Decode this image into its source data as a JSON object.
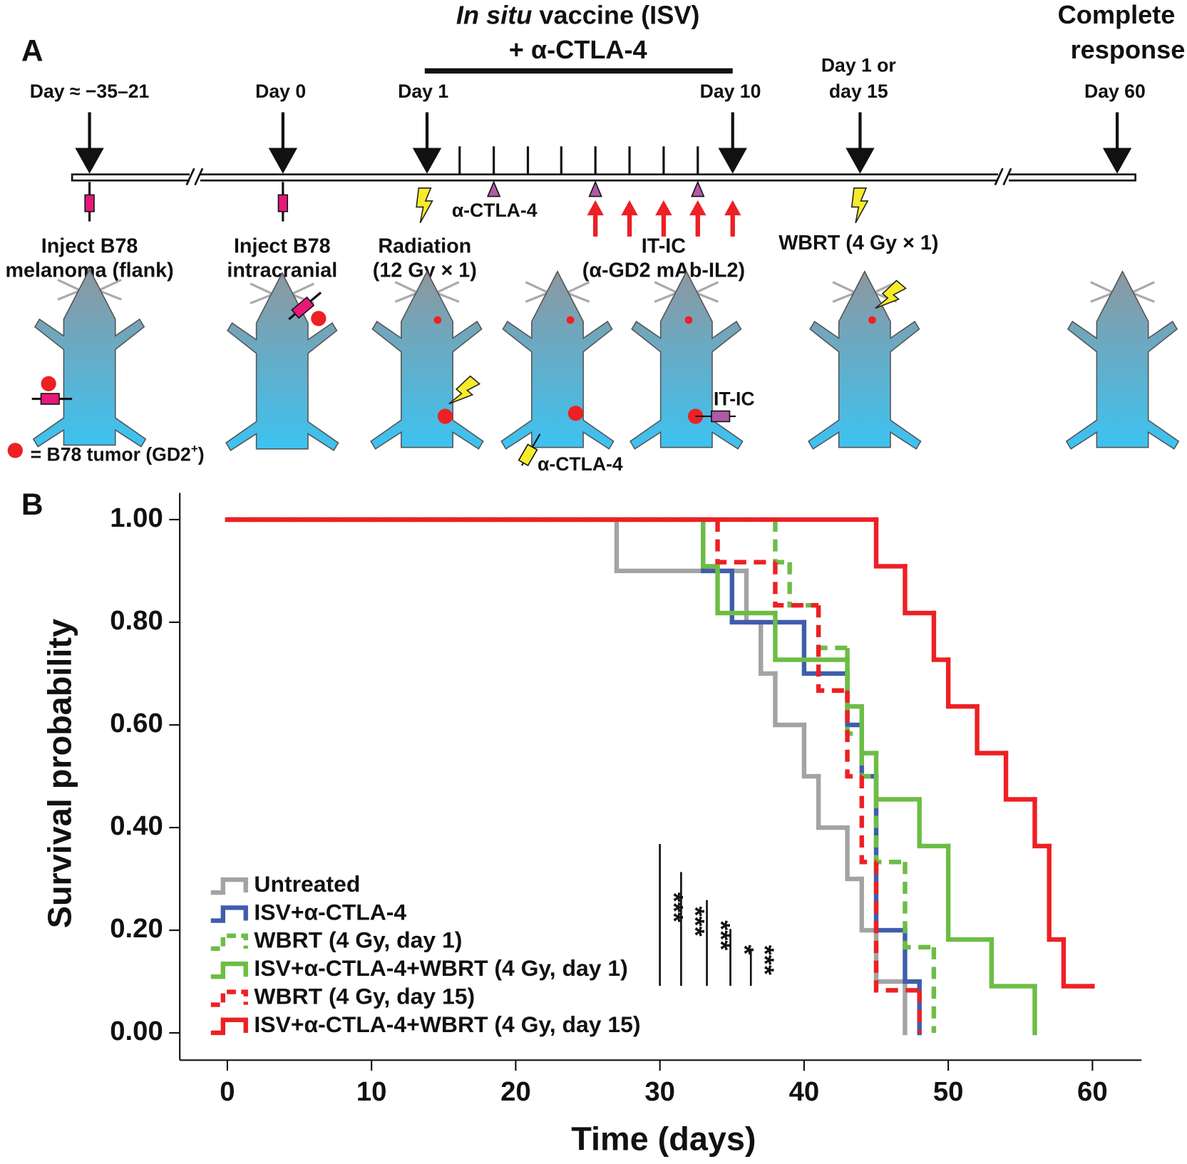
{
  "panel_a": {
    "label": "A",
    "isv_title_italic": "In situ",
    "isv_title_rest": " vaccine (ISV)",
    "isv_subtitle": "+ α-CTLA-4",
    "complete_response": [
      "Complete",
      "response"
    ],
    "days": {
      "flank": "Day ≈ −35–21",
      "intracranial": "Day 0",
      "day1": "Day 1",
      "day10": "Day 10",
      "wbrt": [
        "Day 1 or",
        "day 15"
      ],
      "day60": "Day 60"
    },
    "anti_ctla4": "α-CTLA-4",
    "steps": {
      "flank": [
        "Inject B78",
        "melanoma (flank)"
      ],
      "intracranial": [
        "Inject B78",
        "intracranial"
      ],
      "radiation": [
        "Radiation",
        "(12 Gy × 1)"
      ],
      "itic": [
        "IT-IC",
        "(α-GD2 mAb-IL2)"
      ],
      "wbrt": "WBRT (4 Gy × 1)"
    },
    "tumor_key": {
      "text": "= B78 tumor (GD2",
      "sup": "+",
      "end": ")"
    },
    "mouse_itic": "IT-IC",
    "mouse_ctla4": "α-CTLA-4"
  },
  "chart_data": {
    "type": "step",
    "panel_label": "B",
    "xlabel": "Time (days)",
    "ylabel": "Survival probability",
    "xlim": [
      -3.3,
      63.4
    ],
    "ylim": [
      -0.053,
      1.052
    ],
    "xticks": [
      0,
      10,
      20,
      30,
      40,
      50,
      60
    ],
    "yticks": [
      {
        "value": 0,
        "label": "0.00"
      },
      {
        "value": 0.2,
        "label": "0.20"
      },
      {
        "value": 0.4,
        "label": "0.40"
      },
      {
        "value": 0.6,
        "label": "0.60"
      },
      {
        "value": 0.8,
        "label": "0.80"
      },
      {
        "value": 1,
        "label": "1.00"
      }
    ],
    "legend": "lower left",
    "series": [
      {
        "name": "Untreated",
        "color": "#a3a3a3",
        "dashed": false,
        "x": [
          0,
          27,
          36,
          37,
          38,
          40,
          41,
          43,
          44,
          45,
          47
        ],
        "values": [
          1,
          0.9,
          0.8,
          0.7,
          0.6,
          0.5,
          0.4,
          0.3,
          0.2,
          0.1,
          0
        ]
      },
      {
        "name": "ISV+α-CTLA-4",
        "color": "#3f5dab",
        "dashed": false,
        "x": [
          0,
          33,
          35,
          40,
          43,
          44,
          45,
          47,
          48
        ],
        "values": [
          1,
          0.9,
          0.8,
          0.7,
          0.6,
          0.5,
          0.2,
          0.1,
          0
        ]
      },
      {
        "name": "WBRT (4 Gy, day 1)",
        "color": "#6cbd45",
        "dashed": true,
        "x": [
          0,
          38,
          39,
          41,
          43,
          44,
          45,
          47,
          49
        ],
        "values": [
          1,
          0.917,
          0.833,
          0.75,
          0.583,
          0.5,
          0.333,
          0.167,
          0
        ]
      },
      {
        "name": "ISV+α-CTLA-4+WBRT (4 Gy, day 1)",
        "color": "#6cbd45",
        "dashed": false,
        "x": [
          0,
          33,
          34,
          38,
          43,
          44,
          45,
          48,
          50,
          53,
          56
        ],
        "values": [
          1,
          0.909,
          0.818,
          0.727,
          0.636,
          0.545,
          0.455,
          0.364,
          0.182,
          0.091,
          0
        ]
      },
      {
        "name": "WBRT (4 Gy, day 15)",
        "color": "#ed2024",
        "dashed": true,
        "x": [
          0,
          34,
          38,
          41,
          43,
          44,
          45,
          48
        ],
        "values": [
          1,
          0.917,
          0.833,
          0.667,
          0.5,
          0.333,
          0.083,
          0
        ]
      },
      {
        "name": "ISV+α-CTLA-4+WBRT (4 Gy, day 15)",
        "color": "#ed2024",
        "dashed": false,
        "x": [
          0,
          45,
          47,
          49,
          50,
          52,
          54,
          56,
          57,
          58,
          60
        ],
        "values": [
          1,
          0.909,
          0.818,
          0.727,
          0.636,
          0.545,
          0.455,
          0.364,
          0.182,
          0.091,
          0.091
        ]
      }
    ],
    "annotations": [
      "***",
      "***",
      "***",
      "*",
      "***"
    ]
  }
}
